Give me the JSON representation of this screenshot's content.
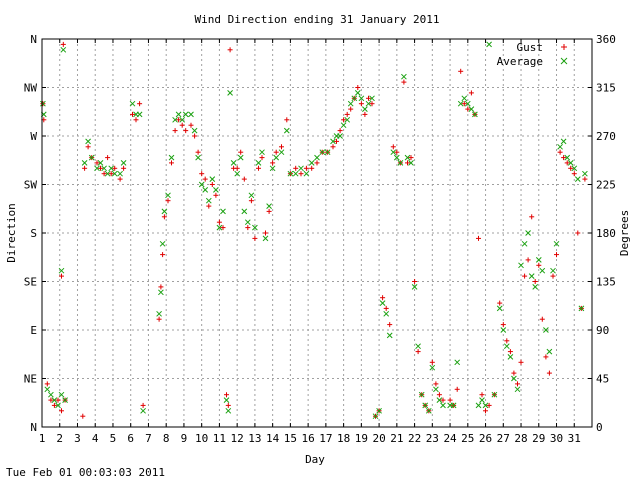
{
  "footer": {
    "timestamp": "Tue Feb 01 00:03:03 2011"
  },
  "chart_data": {
    "type": "scatter",
    "title": "Wind Direction ending 31 January 2011",
    "xlabel": "Day",
    "ylabel_left": "Direction",
    "ylabel_right": "Degrees",
    "xlim": [
      1,
      32
    ],
    "ylim": [
      0,
      360
    ],
    "x_ticks": [
      1,
      2,
      3,
      4,
      5,
      6,
      7,
      8,
      9,
      10,
      11,
      12,
      13,
      14,
      15,
      16,
      17,
      18,
      19,
      20,
      21,
      22,
      23,
      24,
      25,
      26,
      27,
      28,
      29,
      30,
      31
    ],
    "y_ticks_left": [
      {
        "value": 0,
        "label": "N"
      },
      {
        "value": 45,
        "label": "NE"
      },
      {
        "value": 90,
        "label": "E"
      },
      {
        "value": 135,
        "label": "SE"
      },
      {
        "value": 180,
        "label": "S"
      },
      {
        "value": 225,
        "label": "SW"
      },
      {
        "value": 270,
        "label": "W"
      },
      {
        "value": 315,
        "label": "NW"
      },
      {
        "value": 360,
        "label": "N"
      }
    ],
    "y_ticks_right": [
      0,
      45,
      90,
      135,
      180,
      225,
      270,
      315,
      360
    ],
    "grid": true,
    "legend_position": "top-right",
    "colors": {
      "gust": "#e00000",
      "average": "#1aa010"
    },
    "series": [
      {
        "name": "Gust",
        "marker": "plus",
        "points": [
          [
            1.05,
            300
          ],
          [
            1.1,
            285
          ],
          [
            1.3,
            40
          ],
          [
            1.5,
            25
          ],
          [
            1.7,
            20
          ],
          [
            1.9,
            25
          ],
          [
            2.1,
            15
          ],
          [
            2.3,
            25
          ],
          [
            2.1,
            140
          ],
          [
            2.2,
            355
          ],
          [
            3.3,
            10
          ],
          [
            3.4,
            240
          ],
          [
            3.6,
            260
          ],
          [
            3.8,
            250
          ],
          [
            4.1,
            245
          ],
          [
            4.3,
            240
          ],
          [
            4.5,
            235
          ],
          [
            4.7,
            250
          ],
          [
            4.9,
            235
          ],
          [
            5.1,
            240
          ],
          [
            5.4,
            230
          ],
          [
            5.6,
            240
          ],
          [
            6.1,
            290
          ],
          [
            6.3,
            285
          ],
          [
            6.5,
            300
          ],
          [
            6.7,
            20
          ],
          [
            7.6,
            100
          ],
          [
            7.7,
            130
          ],
          [
            7.8,
            160
          ],
          [
            7.9,
            195
          ],
          [
            8.1,
            210
          ],
          [
            8.3,
            245
          ],
          [
            8.5,
            275
          ],
          [
            8.7,
            285
          ],
          [
            8.9,
            280
          ],
          [
            9.1,
            275
          ],
          [
            9.4,
            280
          ],
          [
            9.6,
            270
          ],
          [
            9.8,
            255
          ],
          [
            10.0,
            235
          ],
          [
            10.2,
            230
          ],
          [
            10.4,
            205
          ],
          [
            10.6,
            225
          ],
          [
            10.8,
            215
          ],
          [
            11.0,
            190
          ],
          [
            11.2,
            185
          ],
          [
            11.4,
            30
          ],
          [
            11.5,
            20
          ],
          [
            11.6,
            350
          ],
          [
            11.8,
            240
          ],
          [
            12.0,
            240
          ],
          [
            12.2,
            255
          ],
          [
            12.4,
            230
          ],
          [
            12.6,
            185
          ],
          [
            12.8,
            210
          ],
          [
            13.0,
            175
          ],
          [
            13.2,
            240
          ],
          [
            13.4,
            250
          ],
          [
            13.6,
            180
          ],
          [
            13.8,
            200
          ],
          [
            14.0,
            245
          ],
          [
            14.2,
            255
          ],
          [
            14.5,
            260
          ],
          [
            14.8,
            285
          ],
          [
            15.0,
            235
          ],
          [
            15.3,
            240
          ],
          [
            15.6,
            235
          ],
          [
            15.9,
            240
          ],
          [
            16.2,
            240
          ],
          [
            16.5,
            245
          ],
          [
            16.8,
            255
          ],
          [
            17.1,
            255
          ],
          [
            17.4,
            260
          ],
          [
            17.6,
            265
          ],
          [
            17.8,
            275
          ],
          [
            18.0,
            285
          ],
          [
            18.2,
            290
          ],
          [
            18.4,
            295
          ],
          [
            18.6,
            305
          ],
          [
            18.8,
            315
          ],
          [
            19.0,
            300
          ],
          [
            19.2,
            290
          ],
          [
            19.4,
            305
          ],
          [
            19.6,
            300
          ],
          [
            19.8,
            10
          ],
          [
            20.0,
            15
          ],
          [
            20.2,
            120
          ],
          [
            20.4,
            110
          ],
          [
            20.6,
            95
          ],
          [
            20.8,
            260
          ],
          [
            21.0,
            255
          ],
          [
            21.2,
            245
          ],
          [
            21.4,
            320
          ],
          [
            21.6,
            245
          ],
          [
            21.8,
            250
          ],
          [
            22.0,
            135
          ],
          [
            22.2,
            70
          ],
          [
            22.4,
            30
          ],
          [
            22.6,
            20
          ],
          [
            22.8,
            15
          ],
          [
            23.0,
            60
          ],
          [
            23.2,
            40
          ],
          [
            23.4,
            30
          ],
          [
            23.6,
            25
          ],
          [
            24.0,
            25
          ],
          [
            24.2,
            20
          ],
          [
            24.4,
            35
          ],
          [
            24.6,
            330
          ],
          [
            24.8,
            300
          ],
          [
            25.0,
            295
          ],
          [
            25.2,
            310
          ],
          [
            25.4,
            290
          ],
          [
            25.6,
            175
          ],
          [
            25.8,
            30
          ],
          [
            26.0,
            15
          ],
          [
            26.2,
            20
          ],
          [
            26.5,
            30
          ],
          [
            26.8,
            115
          ],
          [
            27.0,
            95
          ],
          [
            27.2,
            80
          ],
          [
            27.4,
            70
          ],
          [
            27.6,
            50
          ],
          [
            27.8,
            40
          ],
          [
            28.0,
            60
          ],
          [
            28.2,
            140
          ],
          [
            28.4,
            155
          ],
          [
            28.6,
            195
          ],
          [
            28.8,
            135
          ],
          [
            29.0,
            150
          ],
          [
            29.2,
            100
          ],
          [
            29.4,
            65
          ],
          [
            29.6,
            50
          ],
          [
            29.8,
            140
          ],
          [
            30.0,
            160
          ],
          [
            30.2,
            255
          ],
          [
            30.4,
            250
          ],
          [
            30.6,
            245
          ],
          [
            30.8,
            240
          ],
          [
            31.0,
            235
          ],
          [
            31.2,
            180
          ],
          [
            31.4,
            110
          ],
          [
            31.6,
            230
          ]
        ]
      },
      {
        "name": "Average",
        "marker": "x",
        "points": [
          [
            1.05,
            300
          ],
          [
            1.1,
            290
          ],
          [
            1.3,
            35
          ],
          [
            1.5,
            30
          ],
          [
            1.7,
            25
          ],
          [
            1.9,
            20
          ],
          [
            2.1,
            30
          ],
          [
            2.3,
            25
          ],
          [
            2.1,
            145
          ],
          [
            2.2,
            350
          ],
          [
            3.4,
            245
          ],
          [
            3.6,
            265
          ],
          [
            3.8,
            250
          ],
          [
            4.1,
            240
          ],
          [
            4.3,
            245
          ],
          [
            4.5,
            240
          ],
          [
            4.7,
            235
          ],
          [
            4.9,
            240
          ],
          [
            5.1,
            235
          ],
          [
            5.4,
            235
          ],
          [
            5.6,
            245
          ],
          [
            6.1,
            300
          ],
          [
            6.3,
            290
          ],
          [
            6.5,
            290
          ],
          [
            6.7,
            15
          ],
          [
            7.6,
            105
          ],
          [
            7.7,
            125
          ],
          [
            7.8,
            170
          ],
          [
            7.9,
            200
          ],
          [
            8.1,
            215
          ],
          [
            8.3,
            250
          ],
          [
            8.5,
            285
          ],
          [
            8.7,
            290
          ],
          [
            8.9,
            285
          ],
          [
            9.1,
            290
          ],
          [
            9.4,
            290
          ],
          [
            9.6,
            275
          ],
          [
            9.8,
            250
          ],
          [
            10.0,
            225
          ],
          [
            10.2,
            220
          ],
          [
            10.4,
            210
          ],
          [
            10.6,
            230
          ],
          [
            10.8,
            220
          ],
          [
            11.0,
            185
          ],
          [
            11.2,
            200
          ],
          [
            11.4,
            25
          ],
          [
            11.5,
            15
          ],
          [
            11.6,
            310
          ],
          [
            11.8,
            245
          ],
          [
            12.0,
            235
          ],
          [
            12.2,
            250
          ],
          [
            12.4,
            200
          ],
          [
            12.6,
            190
          ],
          [
            12.8,
            215
          ],
          [
            13.0,
            185
          ],
          [
            13.2,
            245
          ],
          [
            13.4,
            255
          ],
          [
            13.6,
            175
          ],
          [
            13.8,
            205
          ],
          [
            14.0,
            240
          ],
          [
            14.2,
            250
          ],
          [
            14.5,
            255
          ],
          [
            14.8,
            275
          ],
          [
            15.0,
            235
          ],
          [
            15.3,
            235
          ],
          [
            15.6,
            240
          ],
          [
            15.9,
            235
          ],
          [
            16.2,
            245
          ],
          [
            16.5,
            250
          ],
          [
            16.8,
            255
          ],
          [
            17.1,
            255
          ],
          [
            17.4,
            265
          ],
          [
            17.6,
            270
          ],
          [
            17.8,
            270
          ],
          [
            18.0,
            280
          ],
          [
            18.2,
            285
          ],
          [
            18.4,
            300
          ],
          [
            18.6,
            305
          ],
          [
            18.8,
            310
          ],
          [
            19.0,
            305
          ],
          [
            19.2,
            295
          ],
          [
            19.4,
            300
          ],
          [
            19.6,
            305
          ],
          [
            19.8,
            10
          ],
          [
            20.0,
            15
          ],
          [
            20.2,
            115
          ],
          [
            20.4,
            105
          ],
          [
            20.6,
            85
          ],
          [
            20.8,
            255
          ],
          [
            21.0,
            250
          ],
          [
            21.2,
            245
          ],
          [
            21.4,
            325
          ],
          [
            21.6,
            250
          ],
          [
            21.8,
            245
          ],
          [
            22.0,
            130
          ],
          [
            22.2,
            75
          ],
          [
            22.4,
            30
          ],
          [
            22.6,
            20
          ],
          [
            22.8,
            15
          ],
          [
            23.0,
            55
          ],
          [
            23.2,
            35
          ],
          [
            23.4,
            25
          ],
          [
            23.6,
            20
          ],
          [
            24.0,
            20
          ],
          [
            24.2,
            20
          ],
          [
            24.4,
            60
          ],
          [
            24.6,
            300
          ],
          [
            24.8,
            305
          ],
          [
            25.0,
            300
          ],
          [
            25.2,
            295
          ],
          [
            25.4,
            290
          ],
          [
            25.6,
            20
          ],
          [
            25.8,
            25
          ],
          [
            26.0,
            20
          ],
          [
            26.2,
            355
          ],
          [
            26.5,
            30
          ],
          [
            26.8,
            110
          ],
          [
            27.0,
            90
          ],
          [
            27.2,
            75
          ],
          [
            27.4,
            65
          ],
          [
            27.6,
            45
          ],
          [
            27.8,
            35
          ],
          [
            28.0,
            150
          ],
          [
            28.2,
            170
          ],
          [
            28.4,
            180
          ],
          [
            28.6,
            140
          ],
          [
            28.8,
            130
          ],
          [
            29.0,
            155
          ],
          [
            29.2,
            145
          ],
          [
            29.4,
            90
          ],
          [
            29.6,
            70
          ],
          [
            29.8,
            145
          ],
          [
            30.0,
            170
          ],
          [
            30.2,
            260
          ],
          [
            30.4,
            265
          ],
          [
            30.6,
            250
          ],
          [
            30.8,
            245
          ],
          [
            31.0,
            240
          ],
          [
            31.2,
            230
          ],
          [
            31.4,
            110
          ],
          [
            31.6,
            235
          ]
        ]
      }
    ]
  }
}
